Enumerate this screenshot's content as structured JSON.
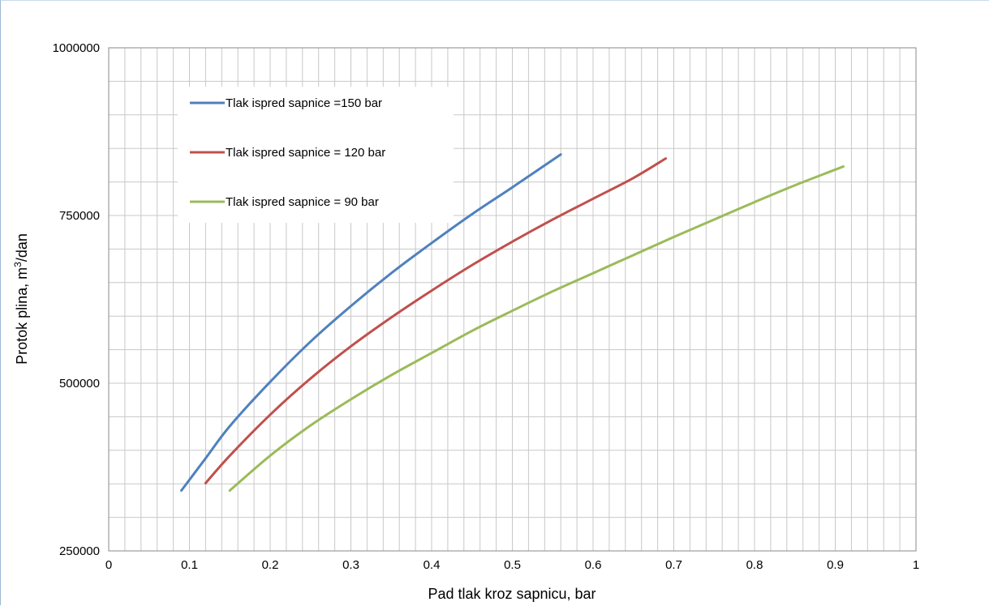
{
  "chart_data": {
    "type": "line",
    "xlabel": "Pad tlak kroz sapnicu, bar",
    "ylabel": {
      "prefix": "Protok plina,  m",
      "sup": "3",
      "suffix": "/dan"
    },
    "xlim": [
      0,
      1
    ],
    "ylim": [
      250000,
      1000000
    ],
    "x_ticks": [
      "0",
      "0.1",
      "0.2",
      "0.3",
      "0.4",
      "0.5",
      "0.6",
      "0.7",
      "0.8",
      "0.9",
      "1"
    ],
    "y_ticks": [
      "250000",
      "500000",
      "750000",
      "1000000"
    ],
    "x_minor_step": 0.02,
    "y_minor_step": 50000,
    "grid": true,
    "legend_placement": "upper-left inside plot",
    "series": [
      {
        "name": "Tlak ispred sapnice =150 bar",
        "color": "#4f81bd",
        "x": [
          0.09,
          0.12,
          0.15,
          0.2,
          0.25,
          0.3,
          0.35,
          0.4,
          0.45,
          0.5,
          0.56
        ],
        "y": [
          340000,
          388000,
          436000,
          502000,
          562000,
          615000,
          664000,
          709000,
          752000,
          792000,
          841000
        ]
      },
      {
        "name": "Tlak ispred sapnice = 120 bar",
        "color": "#c0504d",
        "x": [
          0.12,
          0.15,
          0.2,
          0.25,
          0.3,
          0.35,
          0.4,
          0.45,
          0.5,
          0.55,
          0.6,
          0.65,
          0.69
        ],
        "y": [
          351000,
          392000,
          453000,
          507000,
          555000,
          598000,
          638000,
          676000,
          711000,
          744000,
          775000,
          806000,
          835000
        ]
      },
      {
        "name": "Tlak ispred sapnice = 90 bar",
        "color": "#9bbb59",
        "x": [
          0.15,
          0.2,
          0.25,
          0.3,
          0.35,
          0.4,
          0.45,
          0.5,
          0.55,
          0.6,
          0.65,
          0.7,
          0.75,
          0.8,
          0.85,
          0.91
        ],
        "y": [
          340000,
          392000,
          437000,
          476000,
          512000,
          545000,
          578000,
          608000,
          637000,
          664000,
          691000,
          718000,
          744000,
          770000,
          795000,
          823000
        ]
      }
    ]
  }
}
